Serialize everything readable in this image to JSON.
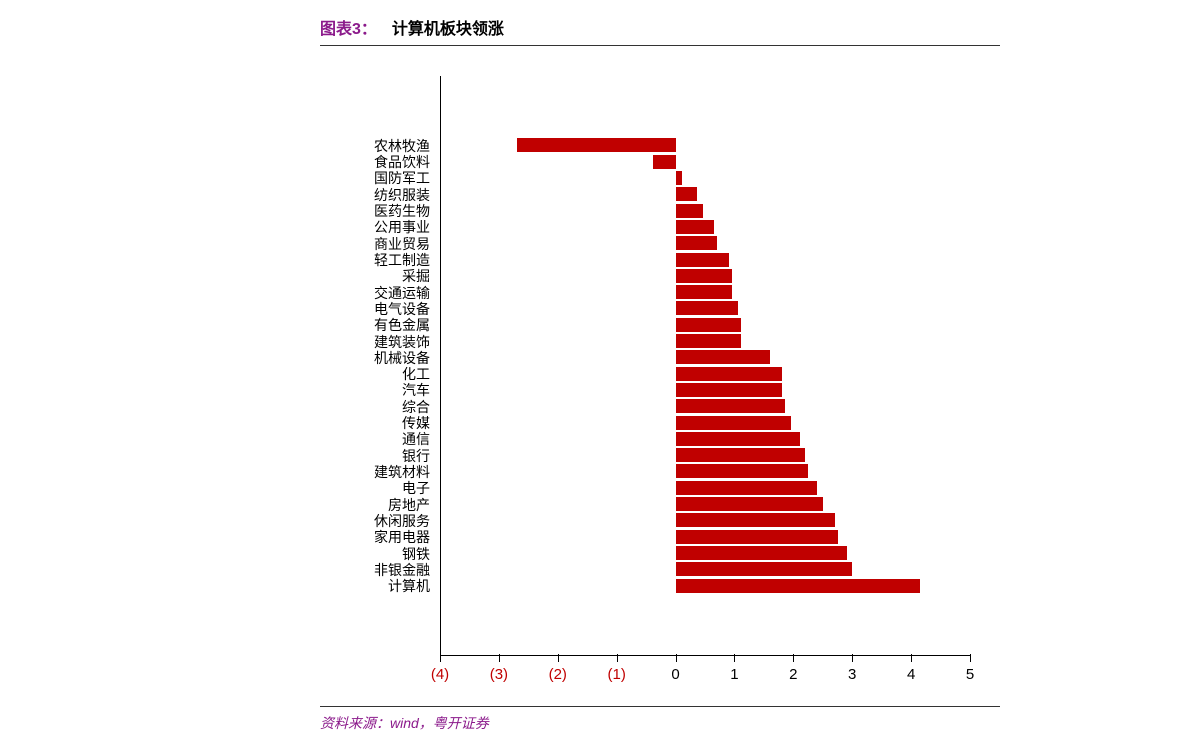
{
  "chart": {
    "type": "bar-horizontal",
    "title_prefix": "图表3：",
    "title": "计算机板块领涨",
    "source": "资料来源：wind，粤开证券",
    "bar_color": "#c00000",
    "axis_color": "#000000",
    "negative_tick_color": "#c00000",
    "positive_tick_color": "#000000",
    "label_fontsize": 14,
    "tick_fontsize": 15,
    "xlim": [
      -4,
      5
    ],
    "xticks": [
      -4,
      -3,
      -2,
      -1,
      0,
      1,
      2,
      3,
      4,
      5
    ],
    "xtick_labels": [
      "(4)",
      "(3)",
      "(2)",
      "(1)",
      "0",
      "1",
      "2",
      "3",
      "4",
      "5"
    ],
    "categories": [
      "农林牧渔",
      "食品饮料",
      "国防军工",
      "纺织服装",
      "医药生物",
      "公用事业",
      "商业贸易",
      "轻工制造",
      "采掘",
      "交通运输",
      "电气设备",
      "有色金属",
      "建筑装饰",
      "机械设备",
      "化工",
      "汽车",
      "综合",
      "传媒",
      "通信",
      "银行",
      "建筑材料",
      "电子",
      "房地产",
      "休闲服务",
      "家用电器",
      "钢铁",
      "非银金融",
      "计算机"
    ],
    "values": [
      -2.7,
      -0.4,
      0.1,
      0.35,
      0.45,
      0.65,
      0.7,
      0.9,
      0.95,
      0.95,
      1.05,
      1.1,
      1.1,
      1.6,
      1.8,
      1.8,
      1.85,
      1.95,
      2.1,
      2.2,
      2.25,
      2.4,
      2.5,
      2.7,
      2.75,
      2.9,
      3.0,
      4.15
    ]
  }
}
